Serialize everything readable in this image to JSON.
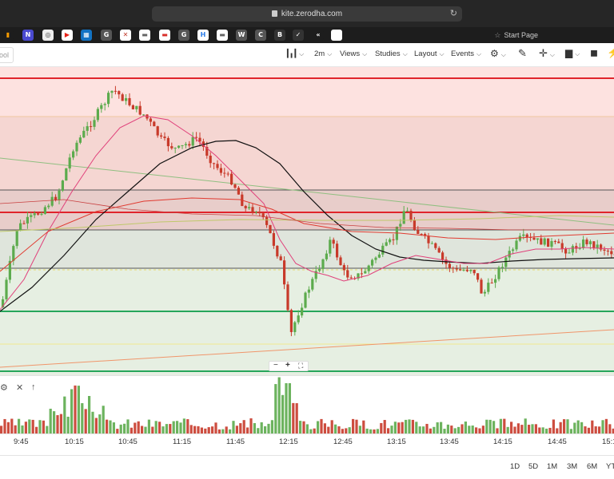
{
  "browser": {
    "url": "kite.zerodha.com",
    "start_page": "Start Page",
    "favicons": [
      {
        "name": "chart-bars-icon",
        "glyph": "▮",
        "color": "#f59b00"
      },
      {
        "name": "notion-style-icon",
        "glyph": "N",
        "color": "#5b5be6"
      },
      {
        "name": "circle-logo-icon",
        "glyph": "◎",
        "color": "#444444"
      },
      {
        "name": "youtube-icon",
        "glyph": "▶",
        "color": "#e62117"
      },
      {
        "name": "trello-icon",
        "glyph": "▦",
        "color": "#1273c4"
      },
      {
        "name": "google-g-icon",
        "glyph": "G",
        "color": "#777777"
      },
      {
        "name": "x-logo-icon",
        "glyph": "✕",
        "color": "#c0392b"
      },
      {
        "name": "car-icon",
        "glyph": "▬",
        "color": "#666666"
      },
      {
        "name": "flag-icon",
        "glyph": "▬",
        "color": "#d9302c"
      },
      {
        "name": "google-g-icon-2",
        "glyph": "G",
        "color": "#777777"
      },
      {
        "name": "h-logo-icon",
        "glyph": "H",
        "color": "#2b7de9"
      },
      {
        "name": "car-icon-2",
        "glyph": "▬",
        "color": "#666666"
      },
      {
        "name": "w-logo-icon",
        "glyph": "W",
        "color": "#888888"
      },
      {
        "name": "c-logo-icon",
        "glyph": "C",
        "color": "#888888"
      },
      {
        "name": "b-logo-icon",
        "glyph": "B",
        "color": "#dddddd"
      },
      {
        "name": "check-icon",
        "glyph": "✓",
        "color": "#ffffff"
      },
      {
        "name": "red-arrows-icon",
        "glyph": "«",
        "color": "#e03030"
      },
      {
        "name": "google-icon",
        "glyph": "G",
        "color": "#ffffff"
      }
    ]
  },
  "toolbar": {
    "symbol_placeholder": "ool",
    "interval": "2m",
    "views": "Views",
    "studies": "Studies",
    "layout": "Layout",
    "events": "Events"
  },
  "time_axis": [
    "9:45",
    "10:15",
    "10:45",
    "11:15",
    "11:45",
    "12:15",
    "12:45",
    "13:15",
    "13:45",
    "14:15",
    "14:45",
    "15:1"
  ],
  "ranges": [
    "1D",
    "5D",
    "1M",
    "3M",
    "6M",
    "YT"
  ],
  "colors": {
    "up": "#5cab4d",
    "down": "#c83a2a",
    "red_line": "#e0242c",
    "green_line": "#26a65b",
    "resistance_zone": "#fce0df",
    "support_zone": "#e3eedd"
  }
}
